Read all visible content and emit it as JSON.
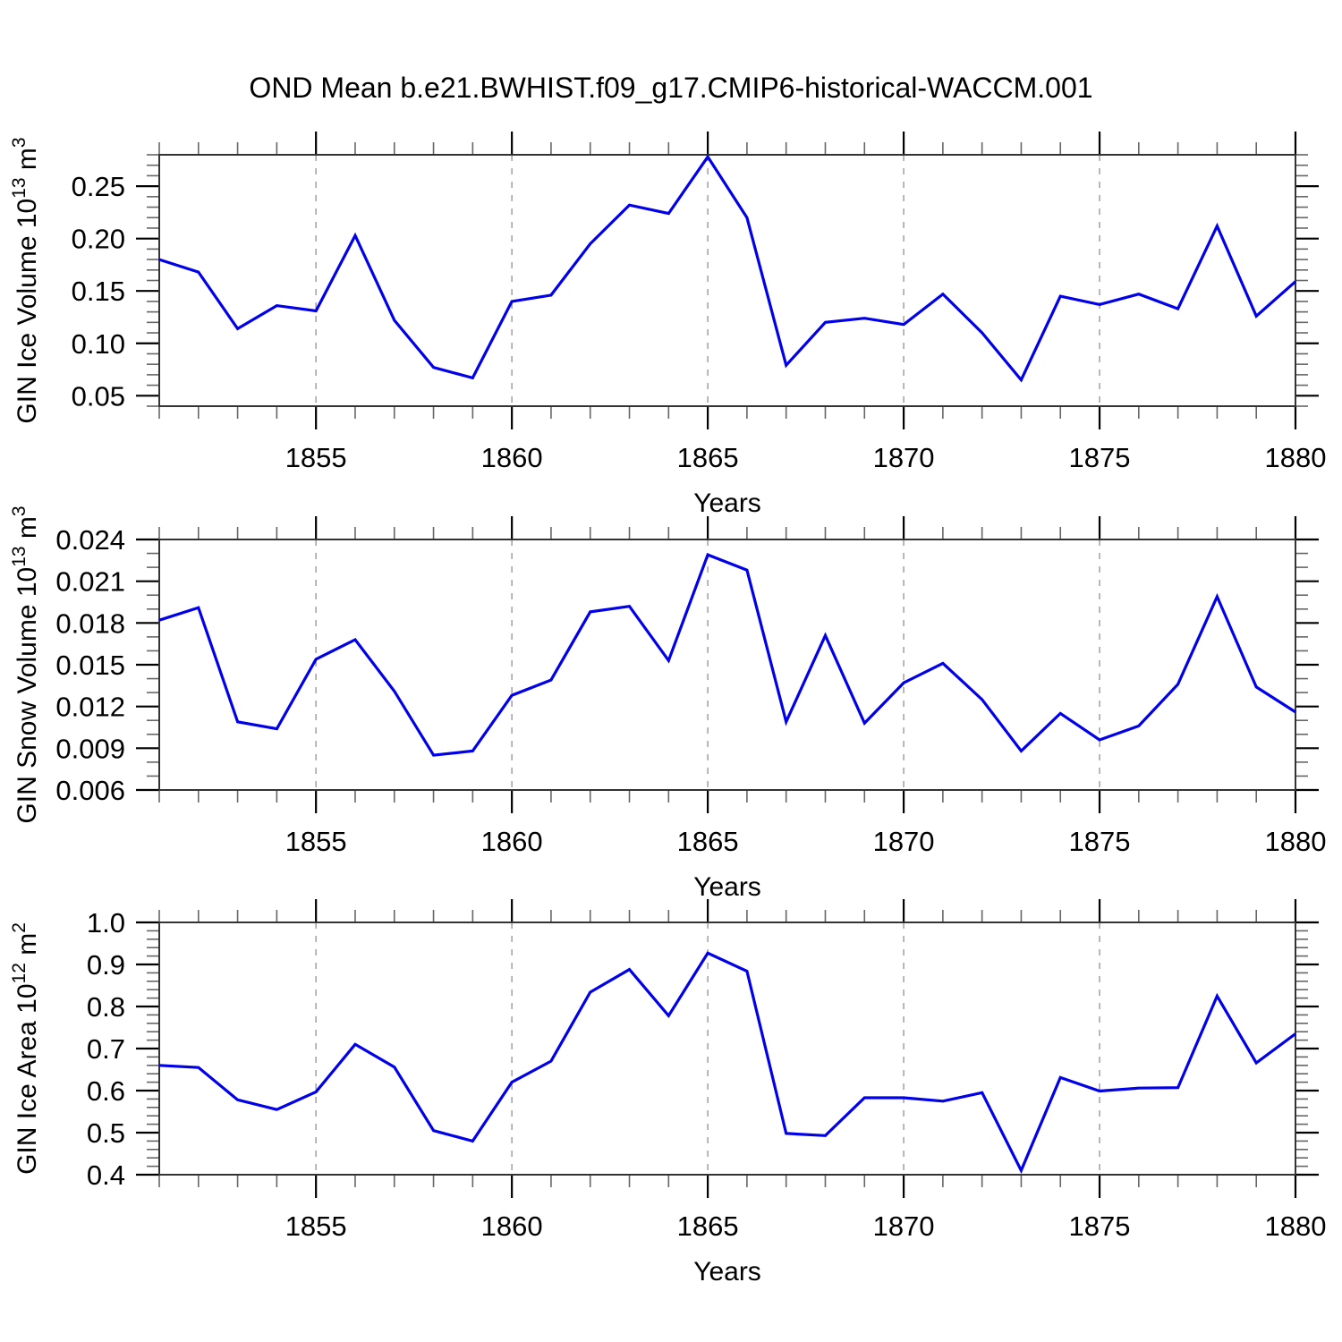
{
  "title": "OND Mean b.e21.BWHIST.f09_g17.CMIP6-historical-WACCM.001",
  "colors": {
    "line": "#0000EB",
    "frame": "#333333",
    "major_tick": "#000000",
    "minor_tick": "#666666",
    "grid": "#999999",
    "text": "#000000"
  },
  "chart_data": [
    {
      "id": "ice-volume",
      "type": "line",
      "xlabel": "Years",
      "ylabel": "GIN Ice Volume 10¹³ m³",
      "ylabel_parts": {
        "base": "GIN Ice Volume 10",
        "exponent": "13",
        "unit": " m",
        "unit_exponent": "3"
      },
      "x": [
        1851,
        1852,
        1853,
        1854,
        1855,
        1856,
        1857,
        1858,
        1859,
        1860,
        1861,
        1862,
        1863,
        1864,
        1865,
        1866,
        1867,
        1868,
        1869,
        1870,
        1871,
        1872,
        1873,
        1874,
        1875,
        1876,
        1877,
        1878,
        1879,
        1880
      ],
      "values": [
        0.18,
        0.168,
        0.114,
        0.136,
        0.131,
        0.203,
        0.122,
        0.077,
        0.067,
        0.14,
        0.146,
        0.195,
        0.232,
        0.224,
        0.278,
        0.22,
        0.079,
        0.12,
        0.124,
        0.118,
        0.147,
        0.11,
        0.065,
        0.145,
        0.137,
        0.147,
        0.133,
        0.212,
        0.126,
        0.159
      ],
      "xlim": [
        1851,
        1880
      ],
      "ylim": [
        0.04,
        0.28
      ],
      "xticks_major": [
        1855,
        1860,
        1865,
        1870,
        1875,
        1880
      ],
      "xtick_labels": [
        "1855",
        "1860",
        "1865",
        "1870",
        "1875",
        "1880"
      ],
      "xtick_minor_step": 1,
      "yticks_major": [
        0.05,
        0.1,
        0.15,
        0.2,
        0.25
      ],
      "ytick_labels": [
        "0.05",
        "0.10",
        "0.15",
        "0.20",
        "0.25"
      ],
      "ytick_minor_step": 0.01,
      "gridlines_x": [
        1855,
        1860,
        1865,
        1870,
        1875
      ],
      "grid": "vertical-dashed",
      "legend": "none"
    },
    {
      "id": "snow-volume",
      "type": "line",
      "xlabel": "Years",
      "ylabel": "GIN Snow Volume 10¹³ m³",
      "ylabel_parts": {
        "base": "GIN Snow Volume 10",
        "exponent": "13",
        "unit": " m",
        "unit_exponent": "3"
      },
      "x": [
        1851,
        1852,
        1853,
        1854,
        1855,
        1856,
        1857,
        1858,
        1859,
        1860,
        1861,
        1862,
        1863,
        1864,
        1865,
        1866,
        1867,
        1868,
        1869,
        1870,
        1871,
        1872,
        1873,
        1874,
        1875,
        1876,
        1877,
        1878,
        1879,
        1880
      ],
      "values": [
        0.0182,
        0.0191,
        0.0109,
        0.0104,
        0.0154,
        0.0168,
        0.0131,
        0.0085,
        0.0088,
        0.0128,
        0.0139,
        0.0188,
        0.0192,
        0.0153,
        0.0229,
        0.0218,
        0.0109,
        0.0171,
        0.0108,
        0.0137,
        0.0151,
        0.0125,
        0.0088,
        0.0115,
        0.0096,
        0.0106,
        0.0136,
        0.0199,
        0.0134,
        0.0116
      ],
      "xlim": [
        1851,
        1880
      ],
      "ylim": [
        0.006,
        0.024
      ],
      "xticks_major": [
        1855,
        1860,
        1865,
        1870,
        1875,
        1880
      ],
      "xtick_labels": [
        "1855",
        "1860",
        "1865",
        "1870",
        "1875",
        "1880"
      ],
      "xtick_minor_step": 1,
      "yticks_major": [
        0.006,
        0.009,
        0.012,
        0.015,
        0.018,
        0.021,
        0.024
      ],
      "ytick_labels": [
        "0.006",
        "0.009",
        "0.012",
        "0.015",
        "0.018",
        "0.021",
        "0.024"
      ],
      "ytick_minor_step": 0.001,
      "gridlines_x": [
        1855,
        1860,
        1865,
        1870,
        1875
      ],
      "grid": "vertical-dashed",
      "legend": "none"
    },
    {
      "id": "ice-area",
      "type": "line",
      "xlabel": "Years",
      "ylabel": "GIN Ice Area 10¹² m²",
      "ylabel_parts": {
        "base": "GIN Ice Area 10",
        "exponent": "12",
        "unit": " m",
        "unit_exponent": "2"
      },
      "x": [
        1851,
        1852,
        1853,
        1854,
        1855,
        1856,
        1857,
        1858,
        1859,
        1860,
        1861,
        1862,
        1863,
        1864,
        1865,
        1866,
        1867,
        1868,
        1869,
        1870,
        1871,
        1872,
        1873,
        1874,
        1875,
        1876,
        1877,
        1878,
        1879,
        1880
      ],
      "values": [
        0.66,
        0.655,
        0.578,
        0.555,
        0.597,
        0.71,
        0.656,
        0.505,
        0.48,
        0.62,
        0.67,
        0.834,
        0.888,
        0.778,
        0.927,
        0.884,
        0.498,
        0.493,
        0.583,
        0.583,
        0.575,
        0.595,
        0.41,
        0.631,
        0.599,
        0.606,
        0.607,
        0.825,
        0.666,
        0.735
      ],
      "xlim": [
        1851,
        1880
      ],
      "ylim": [
        0.4,
        1.0
      ],
      "xticks_major": [
        1855,
        1860,
        1865,
        1870,
        1875,
        1880
      ],
      "xtick_labels": [
        "1855",
        "1860",
        "1865",
        "1870",
        "1875",
        "1880"
      ],
      "xtick_minor_step": 1,
      "yticks_major": [
        0.4,
        0.5,
        0.6,
        0.7,
        0.8,
        0.9,
        1.0
      ],
      "ytick_labels": [
        "0.4",
        "0.5",
        "0.6",
        "0.7",
        "0.8",
        "0.9",
        "1.0"
      ],
      "ytick_minor_step": 0.02,
      "gridlines_x": [
        1855,
        1860,
        1865,
        1870,
        1875
      ],
      "grid": "vertical-dashed",
      "legend": "none"
    }
  ]
}
